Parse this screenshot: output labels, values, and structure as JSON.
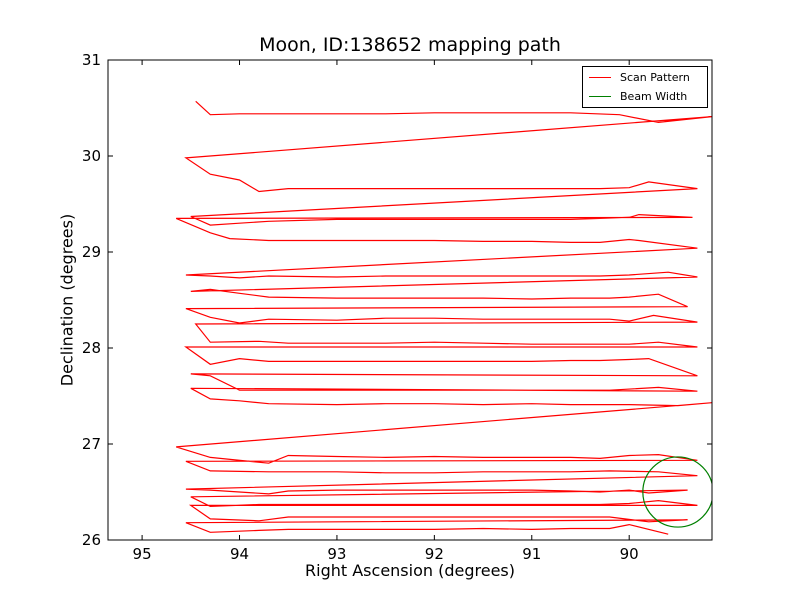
{
  "chart_data": {
    "type": "line",
    "title": "Moon, ID:138652 mapping path",
    "xlabel": "Right Ascension (degrees)",
    "ylabel": "Declination (degrees)",
    "xlim": [
      95.35,
      89.15
    ],
    "ylim": [
      26,
      31
    ],
    "xticks": [
      95,
      94,
      93,
      92,
      91,
      90
    ],
    "yticks": [
      26,
      27,
      28,
      29,
      30,
      31
    ],
    "legend_position": "top-right",
    "grid": false,
    "series": [
      {
        "name": "Scan Pattern",
        "color": "#ff0000",
        "type": "line",
        "x": [
          89.6,
          90.0,
          90.2,
          90.6,
          91.0,
          91.5,
          92.0,
          92.5,
          93.0,
          93.5,
          93.8,
          94.3,
          94.55,
          89.4,
          89.8,
          90.2,
          90.6,
          91.0,
          91.5,
          92.0,
          92.5,
          93.0,
          93.5,
          93.8,
          94.3,
          94.5,
          89.3,
          89.7,
          90.0,
          90.3,
          90.6,
          91.0,
          91.5,
          92.0,
          92.5,
          93.0,
          93.5,
          93.8,
          94.3,
          94.5,
          89.4,
          89.8,
          90.0,
          90.3,
          90.6,
          91.0,
          91.5,
          92.0,
          92.5,
          93.0,
          93.5,
          93.7,
          94.3,
          94.55,
          89.3,
          89.7,
          90.2,
          90.6,
          91.0,
          91.5,
          92.0,
          92.5,
          93.0,
          93.7,
          94.3,
          94.55,
          89.3,
          89.7,
          90.0,
          90.3,
          90.6,
          91.0,
          91.5,
          92.0,
          92.5,
          93.0,
          93.5,
          93.7,
          94.3,
          94.65,
          89.15,
          89.5,
          90.0,
          90.6,
          91.0,
          91.5,
          92.0,
          92.5,
          93.0,
          93.7,
          94.0,
          94.3,
          94.5,
          89.3,
          89.7,
          90.2,
          90.6,
          91.0,
          91.5,
          92.0,
          92.5,
          93.0,
          93.7,
          94.0,
          94.3,
          94.5,
          89.3,
          89.8,
          90.0,
          90.3,
          90.6,
          91.0,
          91.5,
          92.0,
          92.5,
          93.0,
          93.5,
          93.7,
          94.0,
          94.3,
          94.55,
          89.3,
          89.7,
          90.0,
          90.3,
          90.6,
          91.0,
          91.5,
          92.0,
          92.5,
          93.0,
          93.5,
          93.8,
          94.3,
          94.45,
          89.3,
          89.75,
          90.0,
          90.2,
          90.6,
          91.0,
          91.5,
          92.0,
          92.5,
          93.0,
          93.7,
          94.0,
          94.3,
          94.55,
          89.4,
          89.7,
          90.0,
          90.2,
          90.6,
          91.0,
          91.5,
          92.0,
          92.5,
          93.0,
          93.7,
          94.0,
          94.3,
          94.5,
          89.3,
          89.6,
          90.0,
          90.3,
          90.6,
          91.0,
          91.5,
          92.0,
          92.5,
          93.0,
          93.7,
          94.0,
          94.3,
          94.55,
          89.3,
          89.9,
          90.0,
          90.3,
          90.6,
          91.0,
          91.5,
          92.0,
          92.5,
          93.0,
          93.7,
          94.1,
          94.3,
          94.65,
          89.35,
          89.9,
          90.0,
          90.3,
          90.6,
          91.0,
          91.5,
          92.0,
          92.5,
          93.0,
          93.7,
          94.0,
          94.3,
          94.5,
          89.3,
          89.8,
          90.0,
          90.3,
          90.6,
          91.0,
          91.5,
          92.0,
          92.5,
          93.0,
          93.5,
          93.8,
          94.0,
          94.3,
          94.55,
          89.15,
          89.7,
          90.1,
          90.6,
          91.0,
          91.5,
          92.0,
          92.5,
          93.0,
          93.5,
          94.0,
          94.3,
          94.45
        ],
        "y": [
          26.06,
          26.16,
          26.12,
          26.12,
          26.11,
          26.12,
          26.11,
          26.11,
          26.11,
          26.11,
          26.1,
          26.08,
          26.18,
          26.21,
          26.19,
          26.24,
          26.24,
          26.24,
          26.24,
          26.24,
          26.24,
          26.24,
          26.24,
          26.2,
          26.22,
          26.36,
          26.36,
          26.41,
          26.38,
          26.37,
          26.37,
          26.37,
          26.37,
          26.37,
          26.37,
          26.37,
          26.37,
          26.37,
          26.35,
          26.45,
          26.52,
          26.49,
          26.52,
          26.5,
          26.51,
          26.52,
          26.52,
          26.52,
          26.52,
          26.52,
          26.51,
          26.48,
          26.52,
          26.53,
          26.67,
          26.71,
          26.72,
          26.71,
          26.71,
          26.71,
          26.7,
          26.7,
          26.71,
          26.71,
          26.72,
          26.82,
          26.83,
          26.89,
          26.88,
          26.85,
          26.86,
          26.86,
          26.86,
          26.87,
          26.86,
          26.87,
          26.88,
          26.8,
          26.86,
          26.97,
          27.43,
          27.4,
          27.41,
          27.41,
          27.42,
          27.41,
          27.42,
          27.42,
          27.41,
          27.42,
          27.45,
          27.47,
          27.58,
          27.55,
          27.59,
          27.56,
          27.56,
          27.56,
          27.56,
          27.56,
          27.56,
          27.56,
          27.56,
          27.56,
          27.71,
          27.73,
          27.71,
          27.89,
          27.88,
          27.87,
          27.87,
          27.86,
          27.86,
          27.86,
          27.86,
          27.86,
          27.86,
          27.86,
          27.89,
          27.83,
          28.01,
          28.01,
          28.06,
          28.04,
          28.04,
          28.04,
          28.04,
          28.05,
          28.06,
          28.05,
          28.05,
          28.05,
          28.07,
          28.06,
          28.25,
          28.27,
          28.34,
          28.28,
          28.3,
          28.3,
          28.3,
          28.3,
          28.31,
          28.31,
          28.29,
          28.3,
          28.26,
          28.32,
          28.41,
          28.43,
          28.56,
          28.53,
          28.52,
          28.52,
          28.51,
          28.52,
          28.52,
          28.52,
          28.52,
          28.53,
          28.57,
          28.61,
          28.59,
          28.74,
          28.79,
          28.76,
          28.75,
          28.75,
          28.75,
          28.75,
          28.75,
          28.75,
          28.74,
          28.75,
          28.73,
          28.75,
          28.76,
          29.04,
          29.12,
          29.13,
          29.1,
          29.1,
          29.11,
          29.11,
          29.12,
          29.12,
          29.12,
          29.12,
          29.14,
          29.2,
          29.35,
          29.36,
          29.39,
          29.36,
          29.35,
          29.34,
          29.34,
          29.34,
          29.34,
          29.34,
          29.34,
          29.32,
          29.3,
          29.28,
          29.37,
          29.66,
          29.73,
          29.67,
          29.66,
          29.66,
          29.66,
          29.66,
          29.66,
          29.66,
          29.66,
          29.66,
          29.63,
          29.75,
          29.81,
          29.98,
          30.41,
          30.35,
          30.43,
          30.45,
          30.45,
          30.45,
          30.45,
          30.44,
          30.44,
          30.44,
          30.44,
          30.43,
          30.57
        ]
      },
      {
        "name": "Beam Width",
        "color": "#008000",
        "type": "circle",
        "center": [
          89.5,
          26.5
        ],
        "radius_deg": 0.36
      }
    ]
  }
}
